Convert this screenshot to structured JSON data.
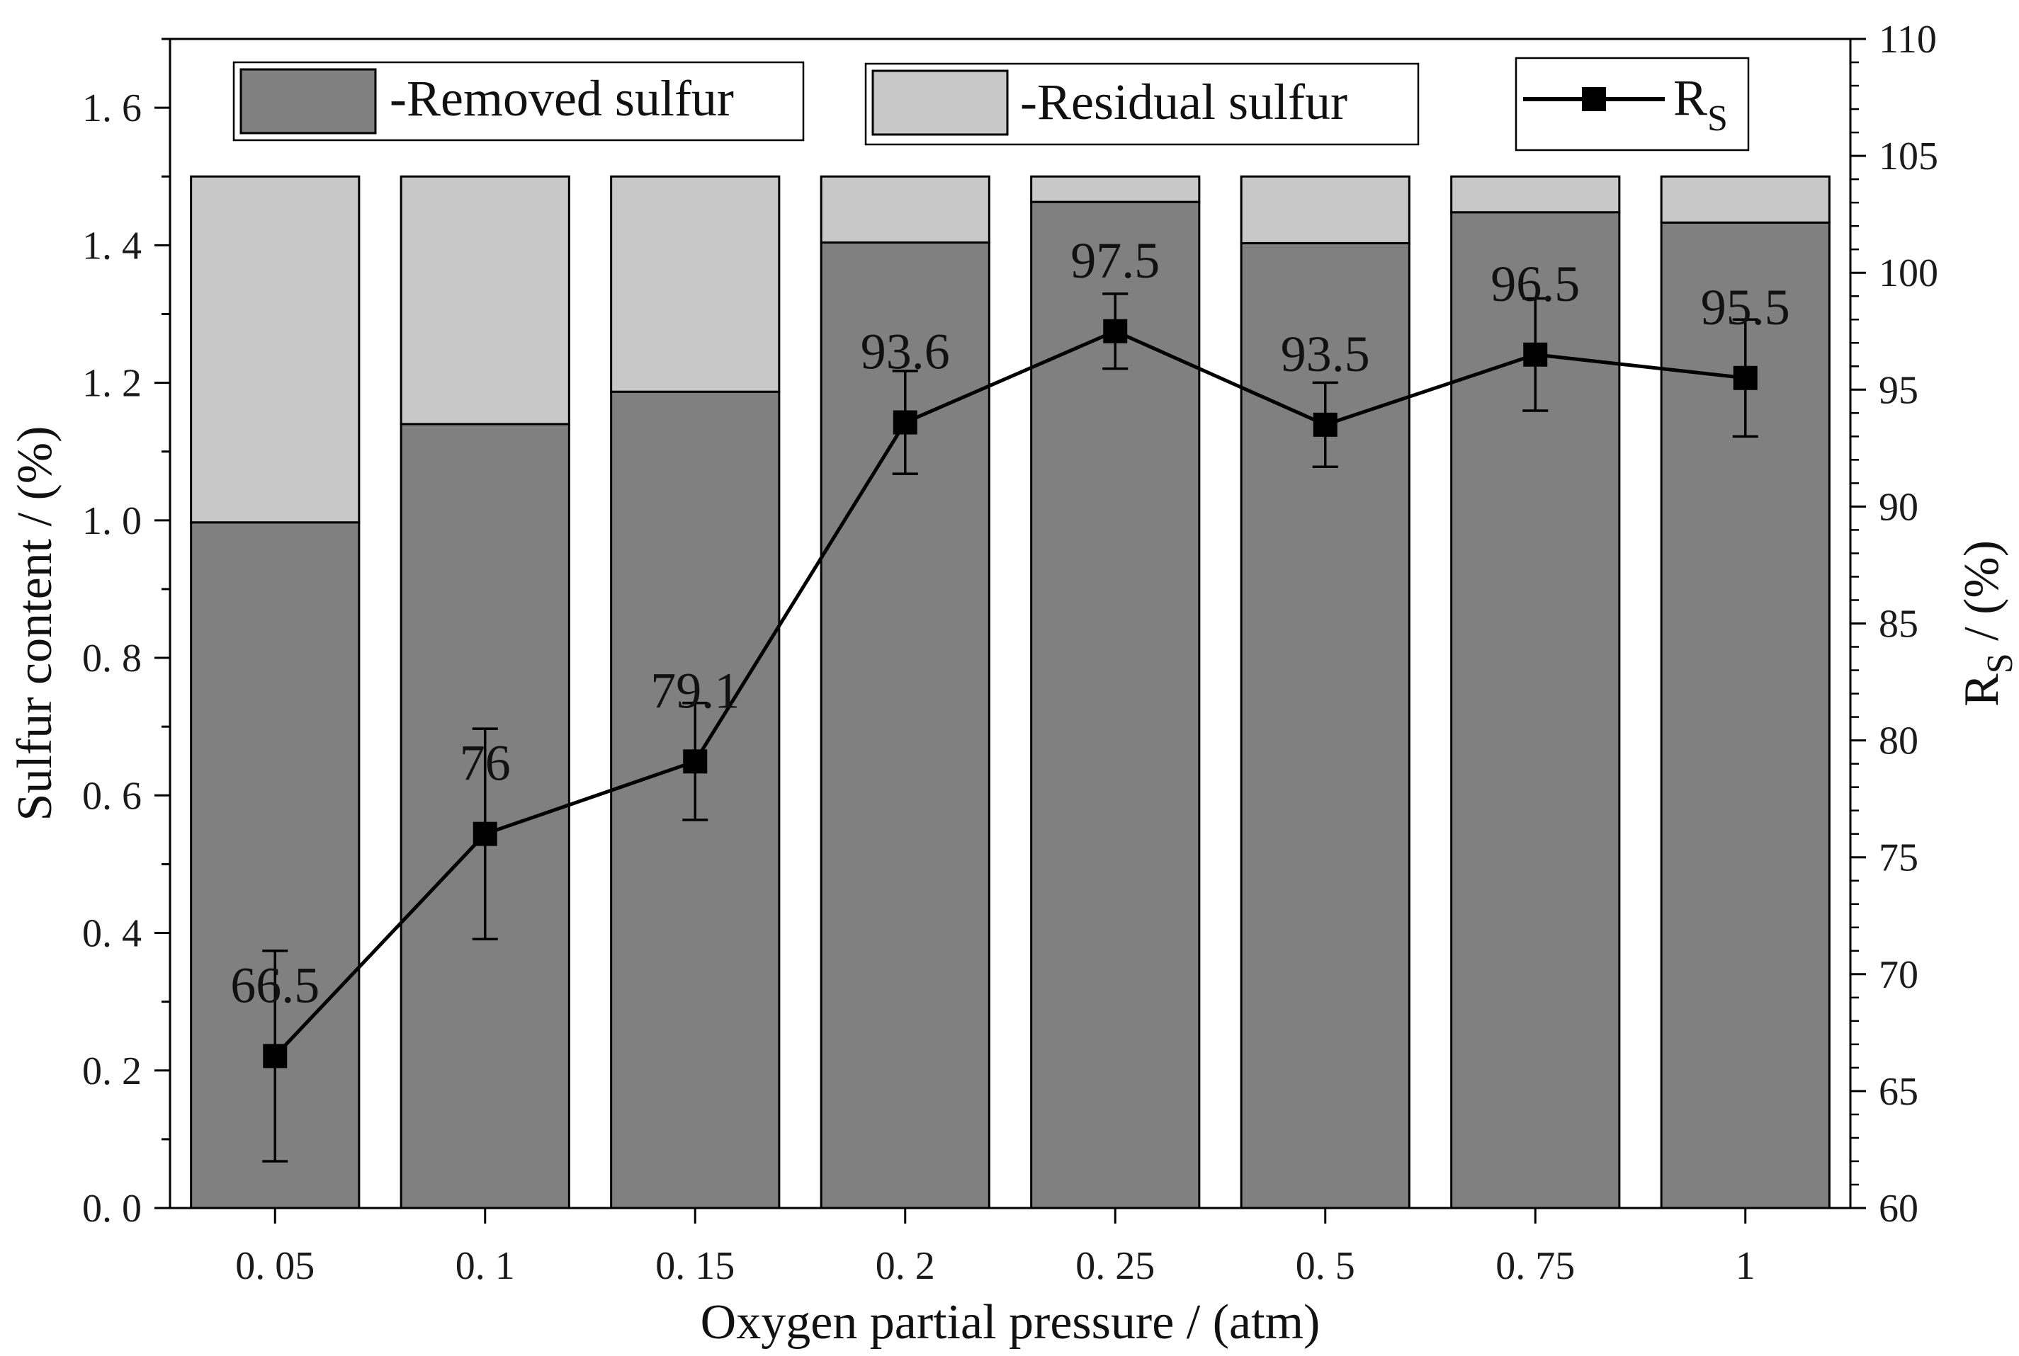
{
  "chart_data": {
    "type": "bar",
    "stacked": true,
    "categories": [
      "0. 05",
      "0. 1",
      "0. 15",
      "0. 2",
      "0. 25",
      "0. 5",
      "0. 75",
      "1"
    ],
    "series": [
      {
        "name": "-Removed sulfur",
        "axis": "left",
        "type": "bar",
        "color": "#808080",
        "values": [
          0.997,
          1.14,
          1.187,
          1.404,
          1.463,
          1.403,
          1.448,
          1.433
        ]
      },
      {
        "name": "-Residual sulfur",
        "axis": "left",
        "type": "bar",
        "color": "#c8c8c8",
        "values": [
          0.503,
          0.36,
          0.313,
          0.096,
          0.037,
          0.097,
          0.052,
          0.067
        ]
      },
      {
        "name": "R",
        "name_subscript": "S",
        "axis": "right",
        "type": "line",
        "color": "#000000",
        "marker": "square",
        "values": [
          66.5,
          76,
          79.1,
          93.6,
          97.5,
          93.5,
          96.5,
          95.5
        ],
        "error": [
          4.5,
          4.5,
          2.5,
          2.2,
          1.6,
          1.8,
          2.4,
          2.5
        ],
        "labels": [
          "66.5",
          "76",
          "79.1",
          "93.6",
          "97.5",
          "93.5",
          "96.5",
          "95.5"
        ]
      }
    ],
    "xlabel": "Oxygen partial pressure / (atm)",
    "ylabel": "Sulfur content / (%)",
    "y2label": "R",
    "y2label_subscript": "S",
    "y2label_suffix": " / (%)",
    "ylim": [
      0,
      1.7
    ],
    "yticks": [
      "0. 0",
      "0. 2",
      "0. 4",
      "0. 6",
      "0. 8",
      "1. 0",
      "1. 2",
      "1. 4",
      "1. 6"
    ],
    "yticks_values": [
      0,
      0.2,
      0.4,
      0.6,
      0.8,
      1.0,
      1.2,
      1.4,
      1.6
    ],
    "y2lim": [
      60,
      110
    ],
    "y2ticks": [
      "60",
      "65",
      "70",
      "75",
      "80",
      "85",
      "90",
      "95",
      "100",
      "105",
      "110"
    ],
    "y2ticks_values": [
      60,
      65,
      70,
      75,
      80,
      85,
      90,
      95,
      100,
      105,
      110
    ],
    "grid": false,
    "legend_position": "top"
  }
}
